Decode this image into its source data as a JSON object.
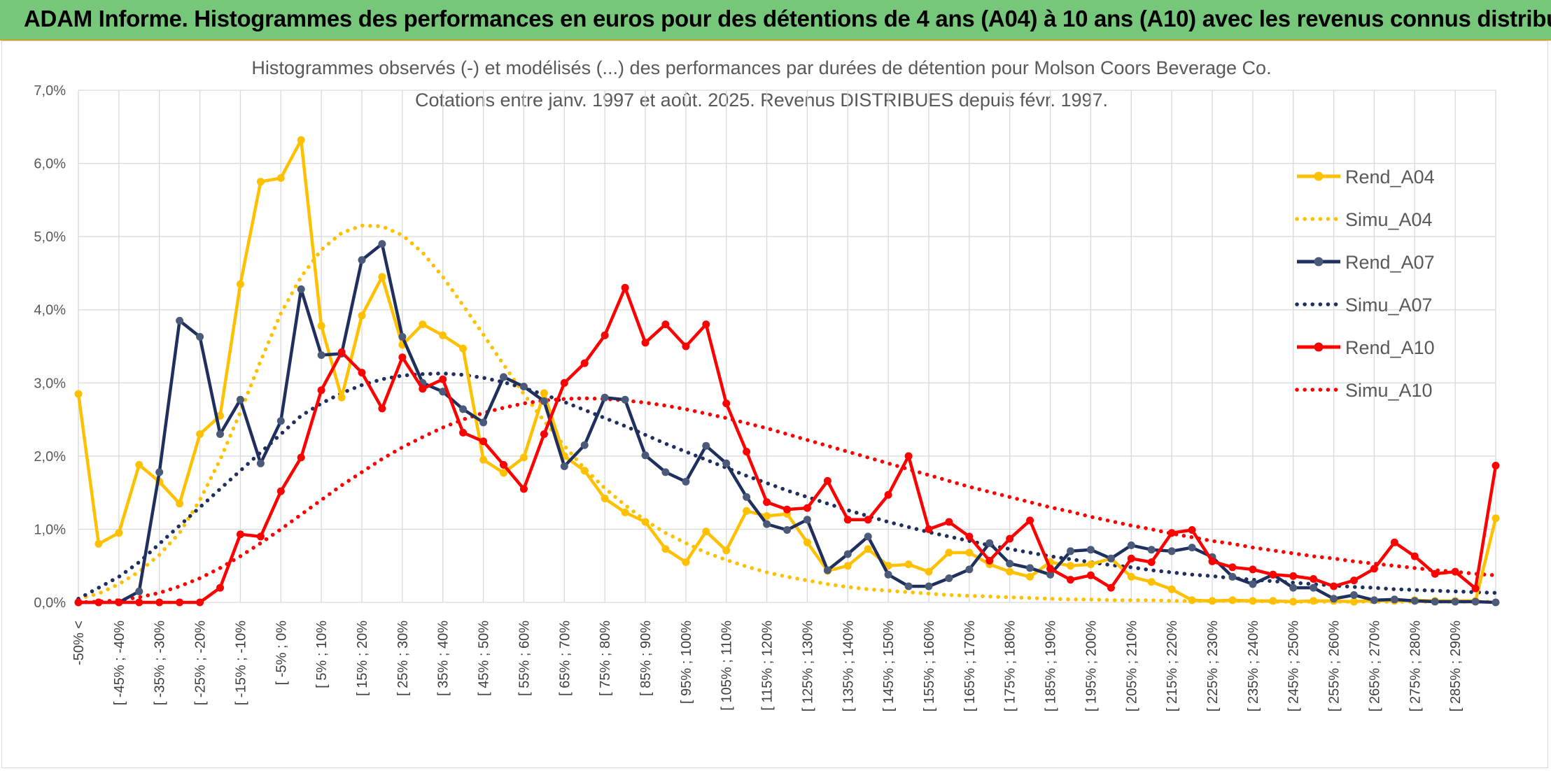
{
  "banner": {
    "title": "ADAM Informe. Histogrammes des performances en euros pour des détentions de 4 ans (A04) à 10 ans (A10) avec les revenus connus distribués"
  },
  "chart_data": {
    "type": "line",
    "title": "Histogrammes observés (-) et modélisés (...) des performances par durées de détention pour Molson Coors Beverage Co.",
    "subtitle": "Cotations entre janv. 1997 et août. 2025. Revenus DISTRIBUES depuis févr. 1997.",
    "ylim": [
      0,
      7
    ],
    "yticks": [
      "0,0%",
      "1,0%",
      "2,0%",
      "3,0%",
      "4,0%",
      "5,0%",
      "6,0%",
      "7,0%"
    ],
    "grid": true,
    "legend_position": "right",
    "x_tick_labels": [
      "-50% <",
      "[ -45% ; -40%",
      "[ -35% ; -30%",
      "[ -25% ; -20%",
      "[ -15% ; -10%",
      "[ -5% ; 0%",
      "[ 5% ; 10%",
      "[ 15% ; 20%",
      "[ 25% ; 30%",
      "[ 35% ; 40%",
      "[ 45% ; 50%",
      "[ 55% ; 60%",
      "[ 65% ; 70%",
      "[ 75% ; 80%",
      "[ 85% ; 90%",
      "[ 95% ; 100%",
      "[ 105% ; 110%",
      "[ 115% ; 120%",
      "[ 125% ; 130%",
      "[ 135% ; 140%",
      "[ 145% ; 150%",
      "[ 155% ; 160%",
      "[ 165% ; 170%",
      "[ 175% ; 180%",
      "[ 185% ; 190%",
      "[ 195% ; 200%",
      "[ 205% ; 210%",
      "[ 215% ; 220%",
      "[ 225% ; 230%",
      "[ 235% ; 240%",
      "[ 245% ; 250%",
      "[ 255% ; 260%",
      "[ 265% ; 270%",
      "[ 275% ; 280%",
      "[ 285% ; 290%"
    ],
    "series": [
      {
        "name": "Rend_A04",
        "color": "#ffc000",
        "style": "solid",
        "values": [
          2.85,
          0.8,
          0.95,
          1.88,
          1.65,
          1.35,
          2.3,
          2.55,
          4.35,
          5.75,
          5.8,
          6.32,
          3.78,
          2.8,
          3.92,
          4.45,
          3.52,
          3.8,
          3.65,
          3.47,
          1.95,
          1.77,
          1.98,
          2.86,
          2.0,
          1.8,
          1.42,
          1.23,
          1.1,
          0.73,
          0.55,
          0.97,
          0.71,
          1.25,
          1.18,
          1.21,
          0.82,
          0.43,
          0.5,
          0.73,
          0.5,
          0.52,
          0.42,
          0.68,
          0.68,
          0.52,
          0.42,
          0.35,
          0.55,
          0.5,
          0.52,
          0.6,
          0.35,
          0.28,
          0.18,
          0.03,
          0.02,
          0.03,
          0.02,
          0.02,
          0.01,
          0.02,
          0.02,
          0.01,
          0.03,
          0.02,
          0.03,
          0.02,
          0.02,
          0.02,
          1.15
        ]
      },
      {
        "name": "Simu_A04",
        "color": "#ffc000",
        "style": "dotted",
        "values": [
          0.05,
          0.12,
          0.25,
          0.42,
          0.65,
          0.95,
          1.4,
          1.95,
          2.6,
          3.3,
          3.95,
          4.45,
          4.82,
          5.05,
          5.15,
          5.14,
          5.02,
          4.78,
          4.45,
          4.06,
          3.66,
          3.25,
          2.85,
          2.48,
          2.14,
          1.83,
          1.56,
          1.33,
          1.12,
          0.95,
          0.81,
          0.68,
          0.58,
          0.49,
          0.41,
          0.35,
          0.3,
          0.25,
          0.21,
          0.18,
          0.16,
          0.14,
          0.12,
          0.1,
          0.09,
          0.08,
          0.07,
          0.06,
          0.05,
          0.04,
          0.04,
          0.03,
          0.03,
          0.03,
          0.02,
          0.02,
          0.02,
          0.02,
          0.02,
          0.01,
          0.01,
          0.01,
          0.01,
          0.01,
          0.01,
          0.01,
          0.01,
          0.01,
          0.01,
          0.01,
          0.01
        ]
      },
      {
        "name": "Rend_A07",
        "color": "#1f2f5e",
        "style": "solid",
        "values": [
          0.0,
          0.0,
          0.0,
          0.15,
          1.78,
          3.85,
          3.63,
          2.3,
          2.77,
          1.9,
          2.48,
          4.28,
          3.38,
          3.4,
          4.68,
          4.9,
          3.63,
          3.0,
          2.88,
          2.64,
          2.46,
          3.08,
          2.95,
          2.75,
          1.86,
          2.15,
          2.8,
          2.77,
          2.01,
          1.78,
          1.65,
          2.14,
          1.9,
          1.44,
          1.07,
          0.99,
          1.13,
          0.44,
          0.66,
          0.9,
          0.38,
          0.22,
          0.22,
          0.33,
          0.45,
          0.81,
          0.53,
          0.47,
          0.38,
          0.7,
          0.72,
          0.6,
          0.78,
          0.72,
          0.7,
          0.75,
          0.62,
          0.35,
          0.25,
          0.38,
          0.2,
          0.2,
          0.05,
          0.1,
          0.03,
          0.04,
          0.02,
          0.01,
          0.01,
          0.01,
          0.0
        ]
      },
      {
        "name": "Simu_A07",
        "color": "#1f2f5e",
        "style": "dotted",
        "values": [
          0.05,
          0.2,
          0.35,
          0.55,
          0.8,
          1.05,
          1.3,
          1.55,
          1.8,
          2.05,
          2.3,
          2.55,
          2.72,
          2.86,
          2.97,
          3.05,
          3.1,
          3.12,
          3.13,
          3.11,
          3.07,
          3.01,
          2.93,
          2.84,
          2.74,
          2.63,
          2.52,
          2.41,
          2.29,
          2.17,
          2.06,
          1.95,
          1.84,
          1.73,
          1.63,
          1.53,
          1.44,
          1.35,
          1.26,
          1.18,
          1.1,
          1.03,
          0.96,
          0.9,
          0.84,
          0.78,
          0.73,
          0.68,
          0.63,
          0.59,
          0.55,
          0.51,
          0.48,
          0.44,
          0.41,
          0.38,
          0.36,
          0.33,
          0.31,
          0.29,
          0.27,
          0.25,
          0.23,
          0.21,
          0.2,
          0.18,
          0.17,
          0.16,
          0.15,
          0.14,
          0.13
        ]
      },
      {
        "name": "Rend_A10",
        "color": "#ff0000",
        "style": "solid",
        "values": [
          0.0,
          0.0,
          0.0,
          0.0,
          0.0,
          0.0,
          0.0,
          0.2,
          0.93,
          0.9,
          1.52,
          1.98,
          2.9,
          3.42,
          3.14,
          2.65,
          3.35,
          2.92,
          3.05,
          2.32,
          2.2,
          1.88,
          1.55,
          2.3,
          3.0,
          3.27,
          3.65,
          4.3,
          3.55,
          3.8,
          3.5,
          3.8,
          2.72,
          2.06,
          1.37,
          1.27,
          1.29,
          1.66,
          1.13,
          1.13,
          1.47,
          2.0,
          1.0,
          1.1,
          0.9,
          0.57,
          0.87,
          1.12,
          0.46,
          0.31,
          0.37,
          0.2,
          0.6,
          0.55,
          0.95,
          0.99,
          0.56,
          0.48,
          0.45,
          0.38,
          0.36,
          0.32,
          0.22,
          0.3,
          0.46,
          0.82,
          0.63,
          0.39,
          0.42,
          0.19,
          1.87
        ]
      },
      {
        "name": "Simu_A10",
        "color": "#ff0000",
        "style": "dotted",
        "values": [
          0.0,
          0.01,
          0.03,
          0.07,
          0.13,
          0.22,
          0.33,
          0.47,
          0.63,
          0.81,
          1.0,
          1.2,
          1.4,
          1.6,
          1.78,
          1.96,
          2.12,
          2.26,
          2.39,
          2.5,
          2.59,
          2.66,
          2.72,
          2.76,
          2.78,
          2.79,
          2.78,
          2.76,
          2.73,
          2.69,
          2.64,
          2.58,
          2.52,
          2.45,
          2.38,
          2.3,
          2.22,
          2.14,
          2.06,
          1.98,
          1.9,
          1.82,
          1.74,
          1.66,
          1.58,
          1.51,
          1.44,
          1.37,
          1.3,
          1.24,
          1.17,
          1.11,
          1.05,
          1.0,
          0.94,
          0.89,
          0.84,
          0.8,
          0.75,
          0.71,
          0.67,
          0.63,
          0.6,
          0.56,
          0.53,
          0.5,
          0.47,
          0.44,
          0.42,
          0.39,
          0.37
        ]
      }
    ]
  }
}
